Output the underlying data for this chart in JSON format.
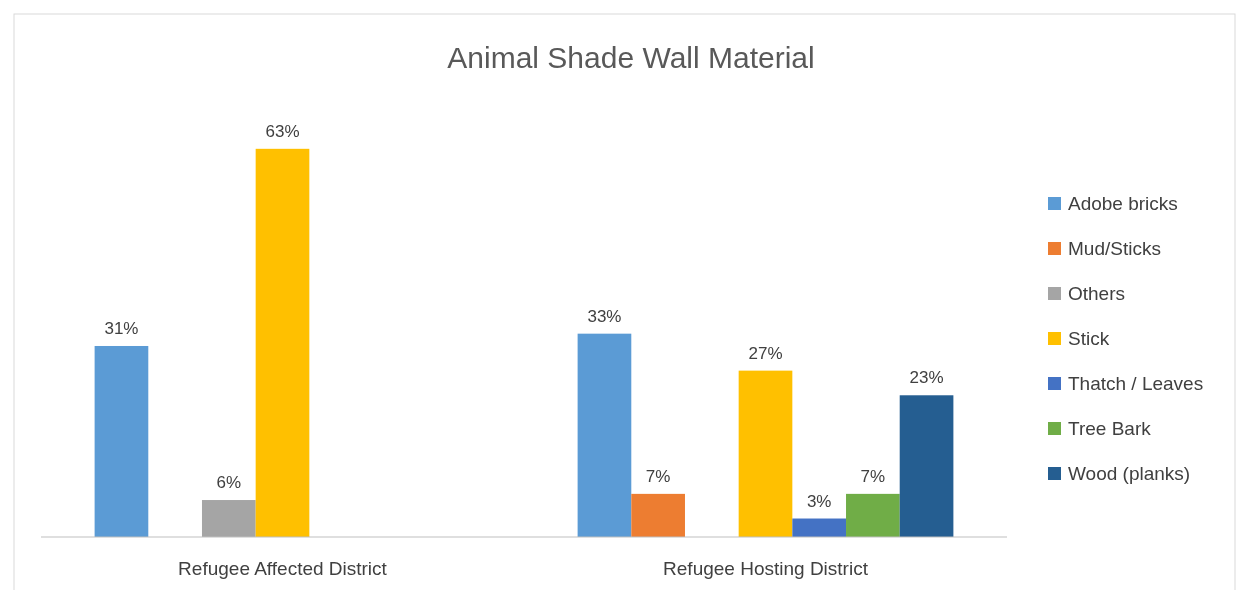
{
  "chart_data": {
    "type": "bar",
    "title": "Animal Shade Wall Material",
    "categories": [
      "Refugee Affected District",
      "Refugee Hosting District"
    ],
    "series": [
      {
        "name": "Adobe bricks",
        "color": "#5b9bd5",
        "values": [
          31,
          33
        ],
        "value_labels": [
          "31%",
          "33%"
        ]
      },
      {
        "name": "Mud/Sticks",
        "color": "#ed7d31",
        "values": [
          null,
          7
        ],
        "value_labels": [
          null,
          "7%"
        ]
      },
      {
        "name": "Others",
        "color": "#a5a5a5",
        "values": [
          6,
          null
        ],
        "value_labels": [
          "6%",
          null
        ]
      },
      {
        "name": "Stick",
        "color": "#ffc000",
        "values": [
          63,
          27
        ],
        "value_labels": [
          "63%",
          "27%"
        ]
      },
      {
        "name": "Thatch / Leaves",
        "color": "#4472c4",
        "values": [
          null,
          3
        ],
        "value_labels": [
          null,
          "3%"
        ]
      },
      {
        "name": "Tree Bark",
        "color": "#70ad47",
        "values": [
          null,
          7
        ],
        "value_labels": [
          null,
          "7%"
        ]
      },
      {
        "name": "Wood (planks)",
        "color": "#255e91",
        "values": [
          null,
          23
        ],
        "value_labels": [
          null,
          "23%"
        ]
      }
    ],
    "legend": "right"
  }
}
